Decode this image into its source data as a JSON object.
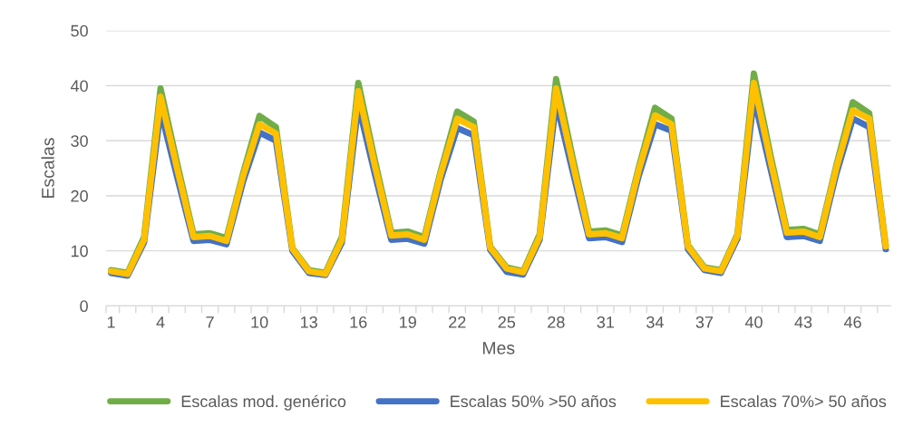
{
  "chart_data": {
    "type": "line",
    "xlabel": "Mes",
    "ylabel": "Escalas",
    "categories": [
      "1",
      null,
      null,
      "4",
      null,
      null,
      "7",
      null,
      null,
      "10",
      null,
      null,
      "13",
      null,
      null,
      "16",
      null,
      null,
      "19",
      null,
      null,
      "22",
      null,
      null,
      "25",
      null,
      null,
      "28",
      null,
      null,
      "31",
      null,
      null,
      "34",
      null,
      null,
      "37",
      null,
      null,
      "40",
      null,
      null,
      "43",
      null,
      null,
      "46",
      null,
      null
    ],
    "ylim": [
      0,
      50
    ],
    "yticks": [
      0,
      10,
      20,
      30,
      40,
      50
    ],
    "grid": "y",
    "legend": "bottom",
    "marker": "none",
    "line_style": "solid",
    "series": [
      {
        "name": "Escalas mod. genérico",
        "color": "#70ad47",
        "values": [
          6.5,
          6,
          12.5,
          39.5,
          26,
          13,
          13.2,
          12.3,
          24,
          34.5,
          32.5,
          10.5,
          6.5,
          6,
          12.5,
          40.5,
          26.5,
          13.3,
          13.5,
          12.5,
          24.5,
          35.3,
          33.5,
          10.8,
          7,
          6.3,
          13,
          41.2,
          27,
          13.5,
          13.7,
          12.8,
          25,
          36,
          34,
          11,
          7,
          6.5,
          13,
          42.2,
          27.5,
          13.8,
          14,
          13,
          25.5,
          37,
          35,
          11
        ]
      },
      {
        "name": "Escalas 50% >50 años",
        "color": "#4472c4",
        "values": [
          6,
          5.5,
          11.5,
          35.5,
          23.5,
          11.8,
          12,
          11.2,
          22.5,
          31.5,
          30,
          10,
          6,
          5.6,
          11.5,
          36.5,
          24,
          12,
          12.2,
          11.3,
          23,
          32.3,
          31,
          10.2,
          6.2,
          5.7,
          12,
          37,
          24.5,
          12.3,
          12.5,
          11.6,
          23.5,
          33,
          31.8,
          10.3,
          6.5,
          6,
          12.2,
          37.8,
          25,
          12.5,
          12.7,
          11.8,
          24,
          34,
          32.5,
          10.3
        ]
      },
      {
        "name": "Escalas 70%> 50 años",
        "color": "#ffc000",
        "values": [
          6.3,
          5.8,
          12,
          38,
          25,
          12.5,
          12.7,
          11.8,
          23.5,
          33,
          31.3,
          10.4,
          6.3,
          5.8,
          12,
          39,
          25.5,
          12.8,
          13,
          12,
          24,
          34,
          32.5,
          10.6,
          6.8,
          6.1,
          12.5,
          39.5,
          26,
          13,
          13.2,
          12.3,
          24.5,
          34.6,
          33,
          10.8,
          6.8,
          6.3,
          12.7,
          40.5,
          26.5,
          13.3,
          13.5,
          12.5,
          25,
          35.5,
          34,
          10.8
        ]
      }
    ]
  }
}
